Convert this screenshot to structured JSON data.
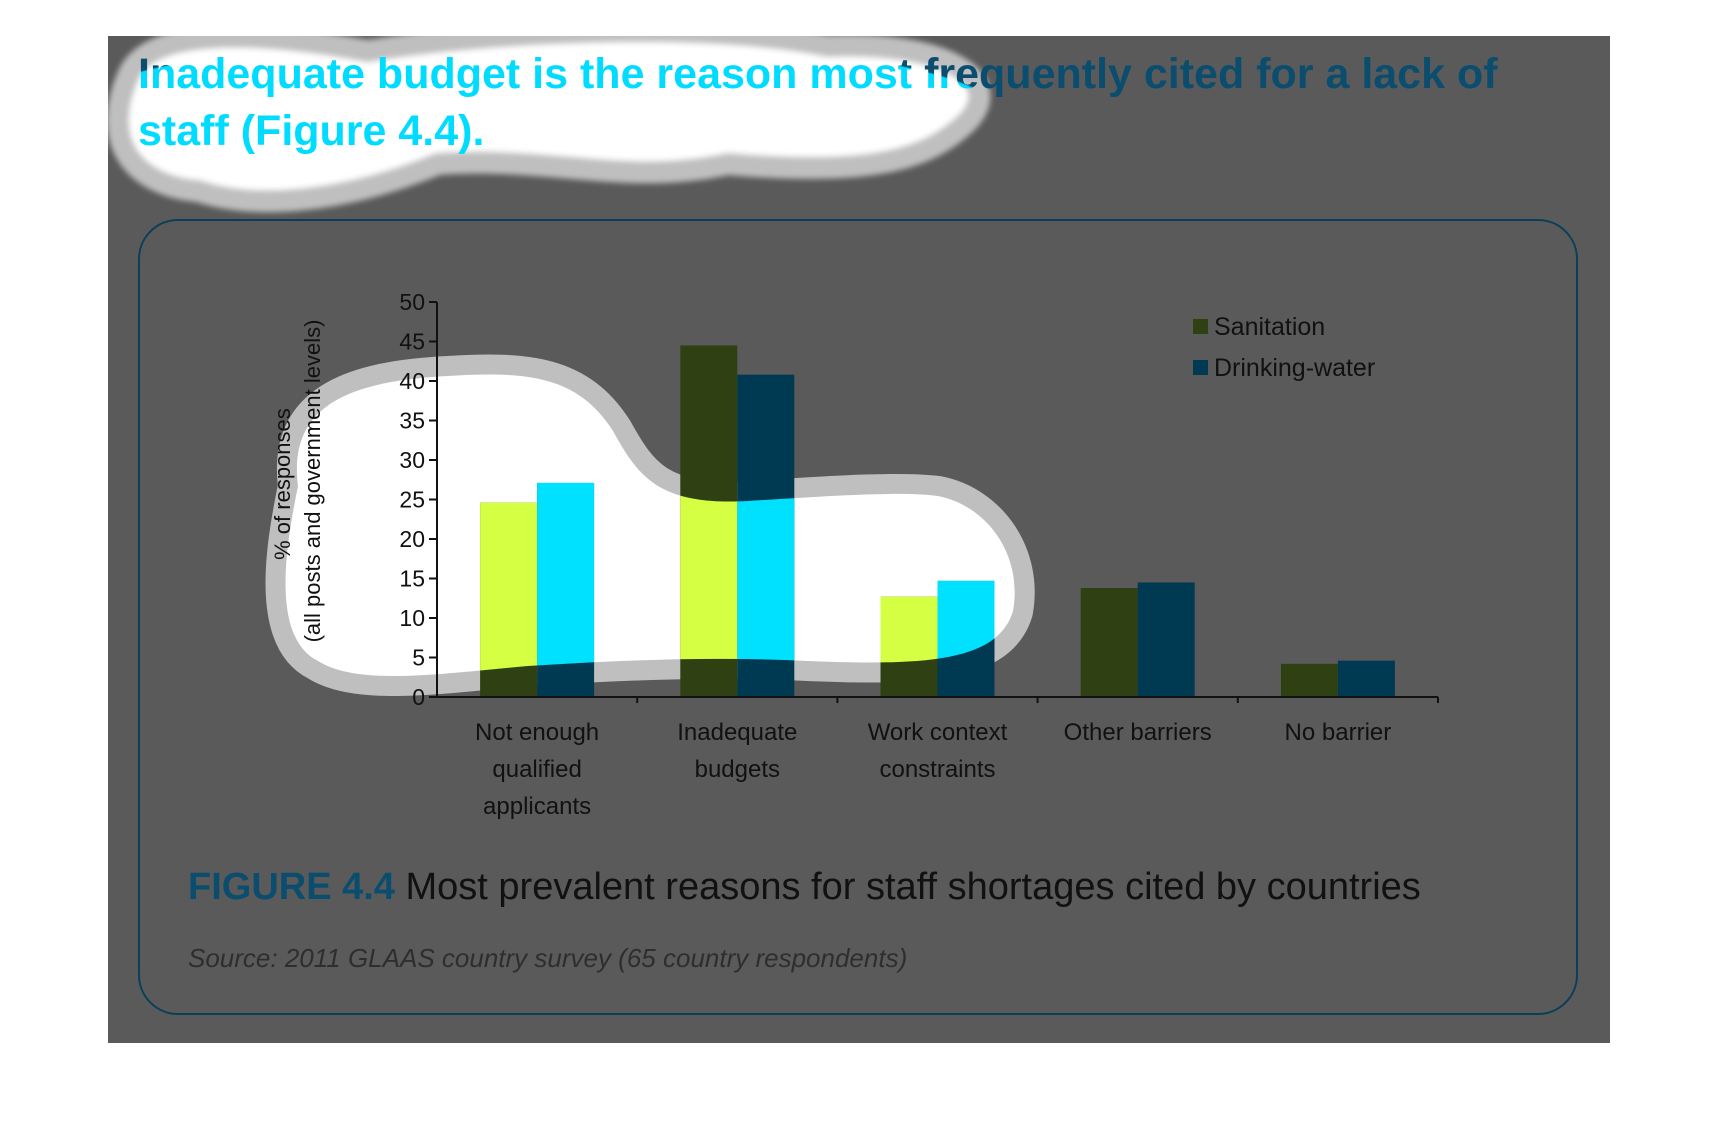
{
  "heading": "Inadequate budget is the reason most frequently cited for a lack of staff (Figure 4.4).",
  "figure": {
    "label": "FIGURE 4.4",
    "title": "Most prevalent reasons for staff shortages cited by countries",
    "source": "Source: 2011 GLAAS country survey (65 country respondents)"
  },
  "colors": {
    "page_background": "#5a5a5a",
    "heading": "#0a4d6e",
    "highlight_heading": "#00dcff",
    "sanitation": "#2f4112",
    "drinking_water": "#003a52",
    "sanitation_highlight": "#d4ff43",
    "drinking_water_highlight": "#00e1ff",
    "highlight_background": "#ffffff",
    "highlight_border": "#bfbfbf"
  },
  "chart_data": {
    "type": "bar",
    "categories": [
      [
        "Not enough",
        "qualified",
        "applicants"
      ],
      [
        "Inadequate",
        "budgets"
      ],
      [
        "Work context",
        "constraints"
      ],
      [
        "Other barriers"
      ],
      [
        "No barrier"
      ]
    ],
    "series": [
      {
        "name": "Sanitation",
        "values": [
          24.6,
          44.5,
          12.7,
          13.8,
          4.2
        ]
      },
      {
        "name": "Drinking-water",
        "values": [
          27.1,
          40.8,
          14.7,
          14.5,
          4.6
        ]
      }
    ],
    "ylabel": [
      "% of responses",
      "(all posts and government levels)"
    ],
    "xlabel": "",
    "ylim": [
      0,
      50
    ],
    "yticks": [
      0,
      5,
      10,
      15,
      20,
      25,
      30,
      35,
      40,
      45,
      50
    ],
    "legend": "top-right",
    "grid": false
  }
}
